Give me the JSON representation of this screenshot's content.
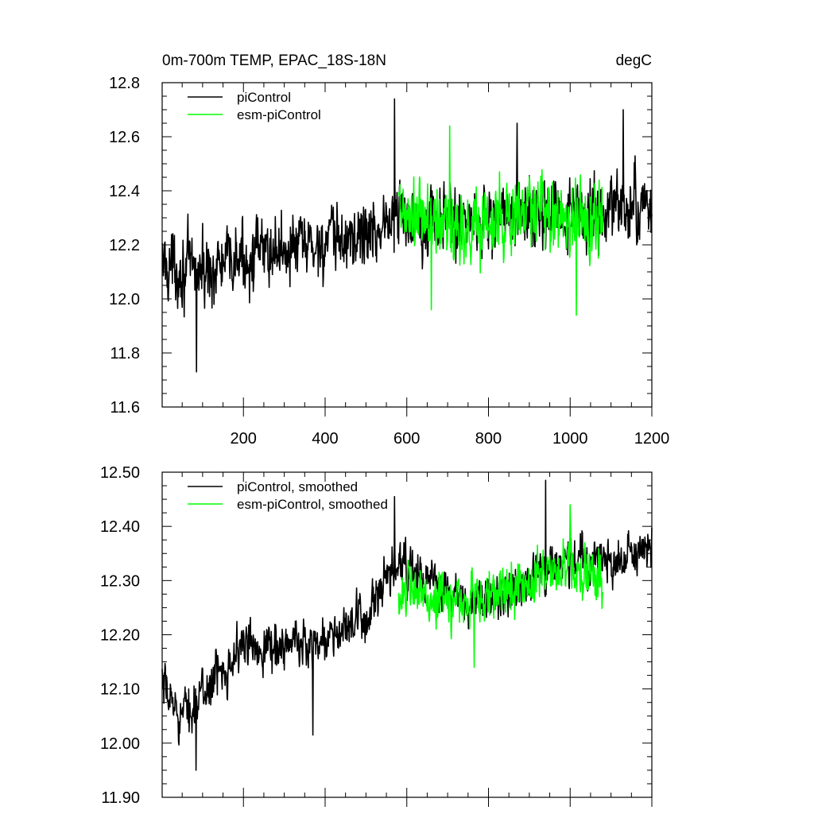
{
  "chart_data": [
    {
      "type": "line",
      "title": "0m-700m TEMP, EPAC_18S-18N",
      "units": "degC",
      "xlabel": "",
      "ylabel": "",
      "xlim": [
        1,
        1200
      ],
      "ylim": [
        11.6,
        12.8
      ],
      "x_ticks": [
        200,
        400,
        600,
        800,
        1000,
        1200
      ],
      "x_tick_labels": [
        "200",
        "400",
        "600",
        "800",
        "1000",
        "1200"
      ],
      "y_ticks": [
        11.6,
        11.8,
        12.0,
        12.2,
        12.4,
        12.6,
        12.8
      ],
      "y_tick_labels": [
        "11.6",
        "11.8",
        "12.0",
        "12.2",
        "12.4",
        "12.6",
        "12.8"
      ],
      "legend_position": "top-left",
      "series": [
        {
          "name": "piControl",
          "color": "#000000",
          "x_start": 1,
          "x_end": 1200,
          "trend_knots": [
            [
              1,
              12.13
            ],
            [
              100,
              12.1
            ],
            [
              200,
              12.15
            ],
            [
              300,
              12.19
            ],
            [
              400,
              12.2
            ],
            [
              500,
              12.24
            ],
            [
              580,
              12.31
            ],
            [
              700,
              12.29
            ],
            [
              800,
              12.3
            ],
            [
              900,
              12.31
            ],
            [
              1000,
              12.3
            ],
            [
              1100,
              12.33
            ],
            [
              1200,
              12.34
            ]
          ],
          "noise_amplitude": 0.13,
          "extremes": [
            [
              570,
              12.74
            ],
            [
              85,
              11.73
            ],
            [
              1130,
              12.7
            ],
            [
              870,
              12.65
            ]
          ]
        },
        {
          "name": "esm-piControl",
          "color": "#00ff00",
          "x_start": 580,
          "x_end": 1080,
          "trend_knots": [
            [
              580,
              12.3
            ],
            [
              700,
              12.27
            ],
            [
              800,
              12.28
            ],
            [
              900,
              12.32
            ],
            [
              1000,
              12.3
            ],
            [
              1080,
              12.29
            ]
          ],
          "noise_amplitude": 0.15,
          "extremes": [
            [
              705,
              12.64
            ],
            [
              1015,
              11.94
            ],
            [
              660,
              11.96
            ]
          ]
        }
      ]
    },
    {
      "type": "line",
      "title": "",
      "xlabel": "",
      "ylabel": "",
      "xlim": [
        1,
        1200
      ],
      "ylim": [
        11.9,
        12.5
      ],
      "x_ticks": [
        200,
        400,
        600,
        800,
        1000,
        1200
      ],
      "x_tick_labels": [
        "",
        "",
        "",
        "",
        "",
        ""
      ],
      "y_ticks": [
        11.9,
        12.0,
        12.1,
        12.2,
        12.3,
        12.4,
        12.5
      ],
      "y_tick_labels": [
        "11.90",
        "12.00",
        "12.10",
        "12.20",
        "12.30",
        "12.40",
        "12.50"
      ],
      "legend_position": "top-left",
      "series": [
        {
          "name": "piControl, smoothed",
          "color": "#000000",
          "x_start": 1,
          "x_end": 1200,
          "trend_knots": [
            [
              1,
              12.1
            ],
            [
              50,
              12.05
            ],
            [
              100,
              12.09
            ],
            [
              150,
              12.14
            ],
            [
              200,
              12.18
            ],
            [
              300,
              12.18
            ],
            [
              400,
              12.19
            ],
            [
              500,
              12.23
            ],
            [
              580,
              12.33
            ],
            [
              650,
              12.3
            ],
            [
              750,
              12.25
            ],
            [
              850,
              12.28
            ],
            [
              950,
              12.33
            ],
            [
              1050,
              12.34
            ],
            [
              1120,
              12.33
            ],
            [
              1200,
              12.36
            ]
          ],
          "noise_amplitude": 0.045,
          "extremes": [
            [
              940,
              12.485
            ],
            [
              84,
              11.95
            ],
            [
              370,
              12.015
            ],
            [
              570,
              12.455
            ]
          ]
        },
        {
          "name": "esm-piControl, smoothed",
          "color": "#00ff00",
          "x_start": 580,
          "x_end": 1080,
          "trend_knots": [
            [
              580,
              12.28
            ],
            [
              700,
              12.26
            ],
            [
              800,
              12.27
            ],
            [
              900,
              12.3
            ],
            [
              1000,
              12.33
            ],
            [
              1080,
              12.29
            ]
          ],
          "noise_amplitude": 0.05,
          "extremes": [
            [
              1000,
              12.44
            ],
            [
              765,
              12.14
            ]
          ]
        }
      ]
    }
  ]
}
